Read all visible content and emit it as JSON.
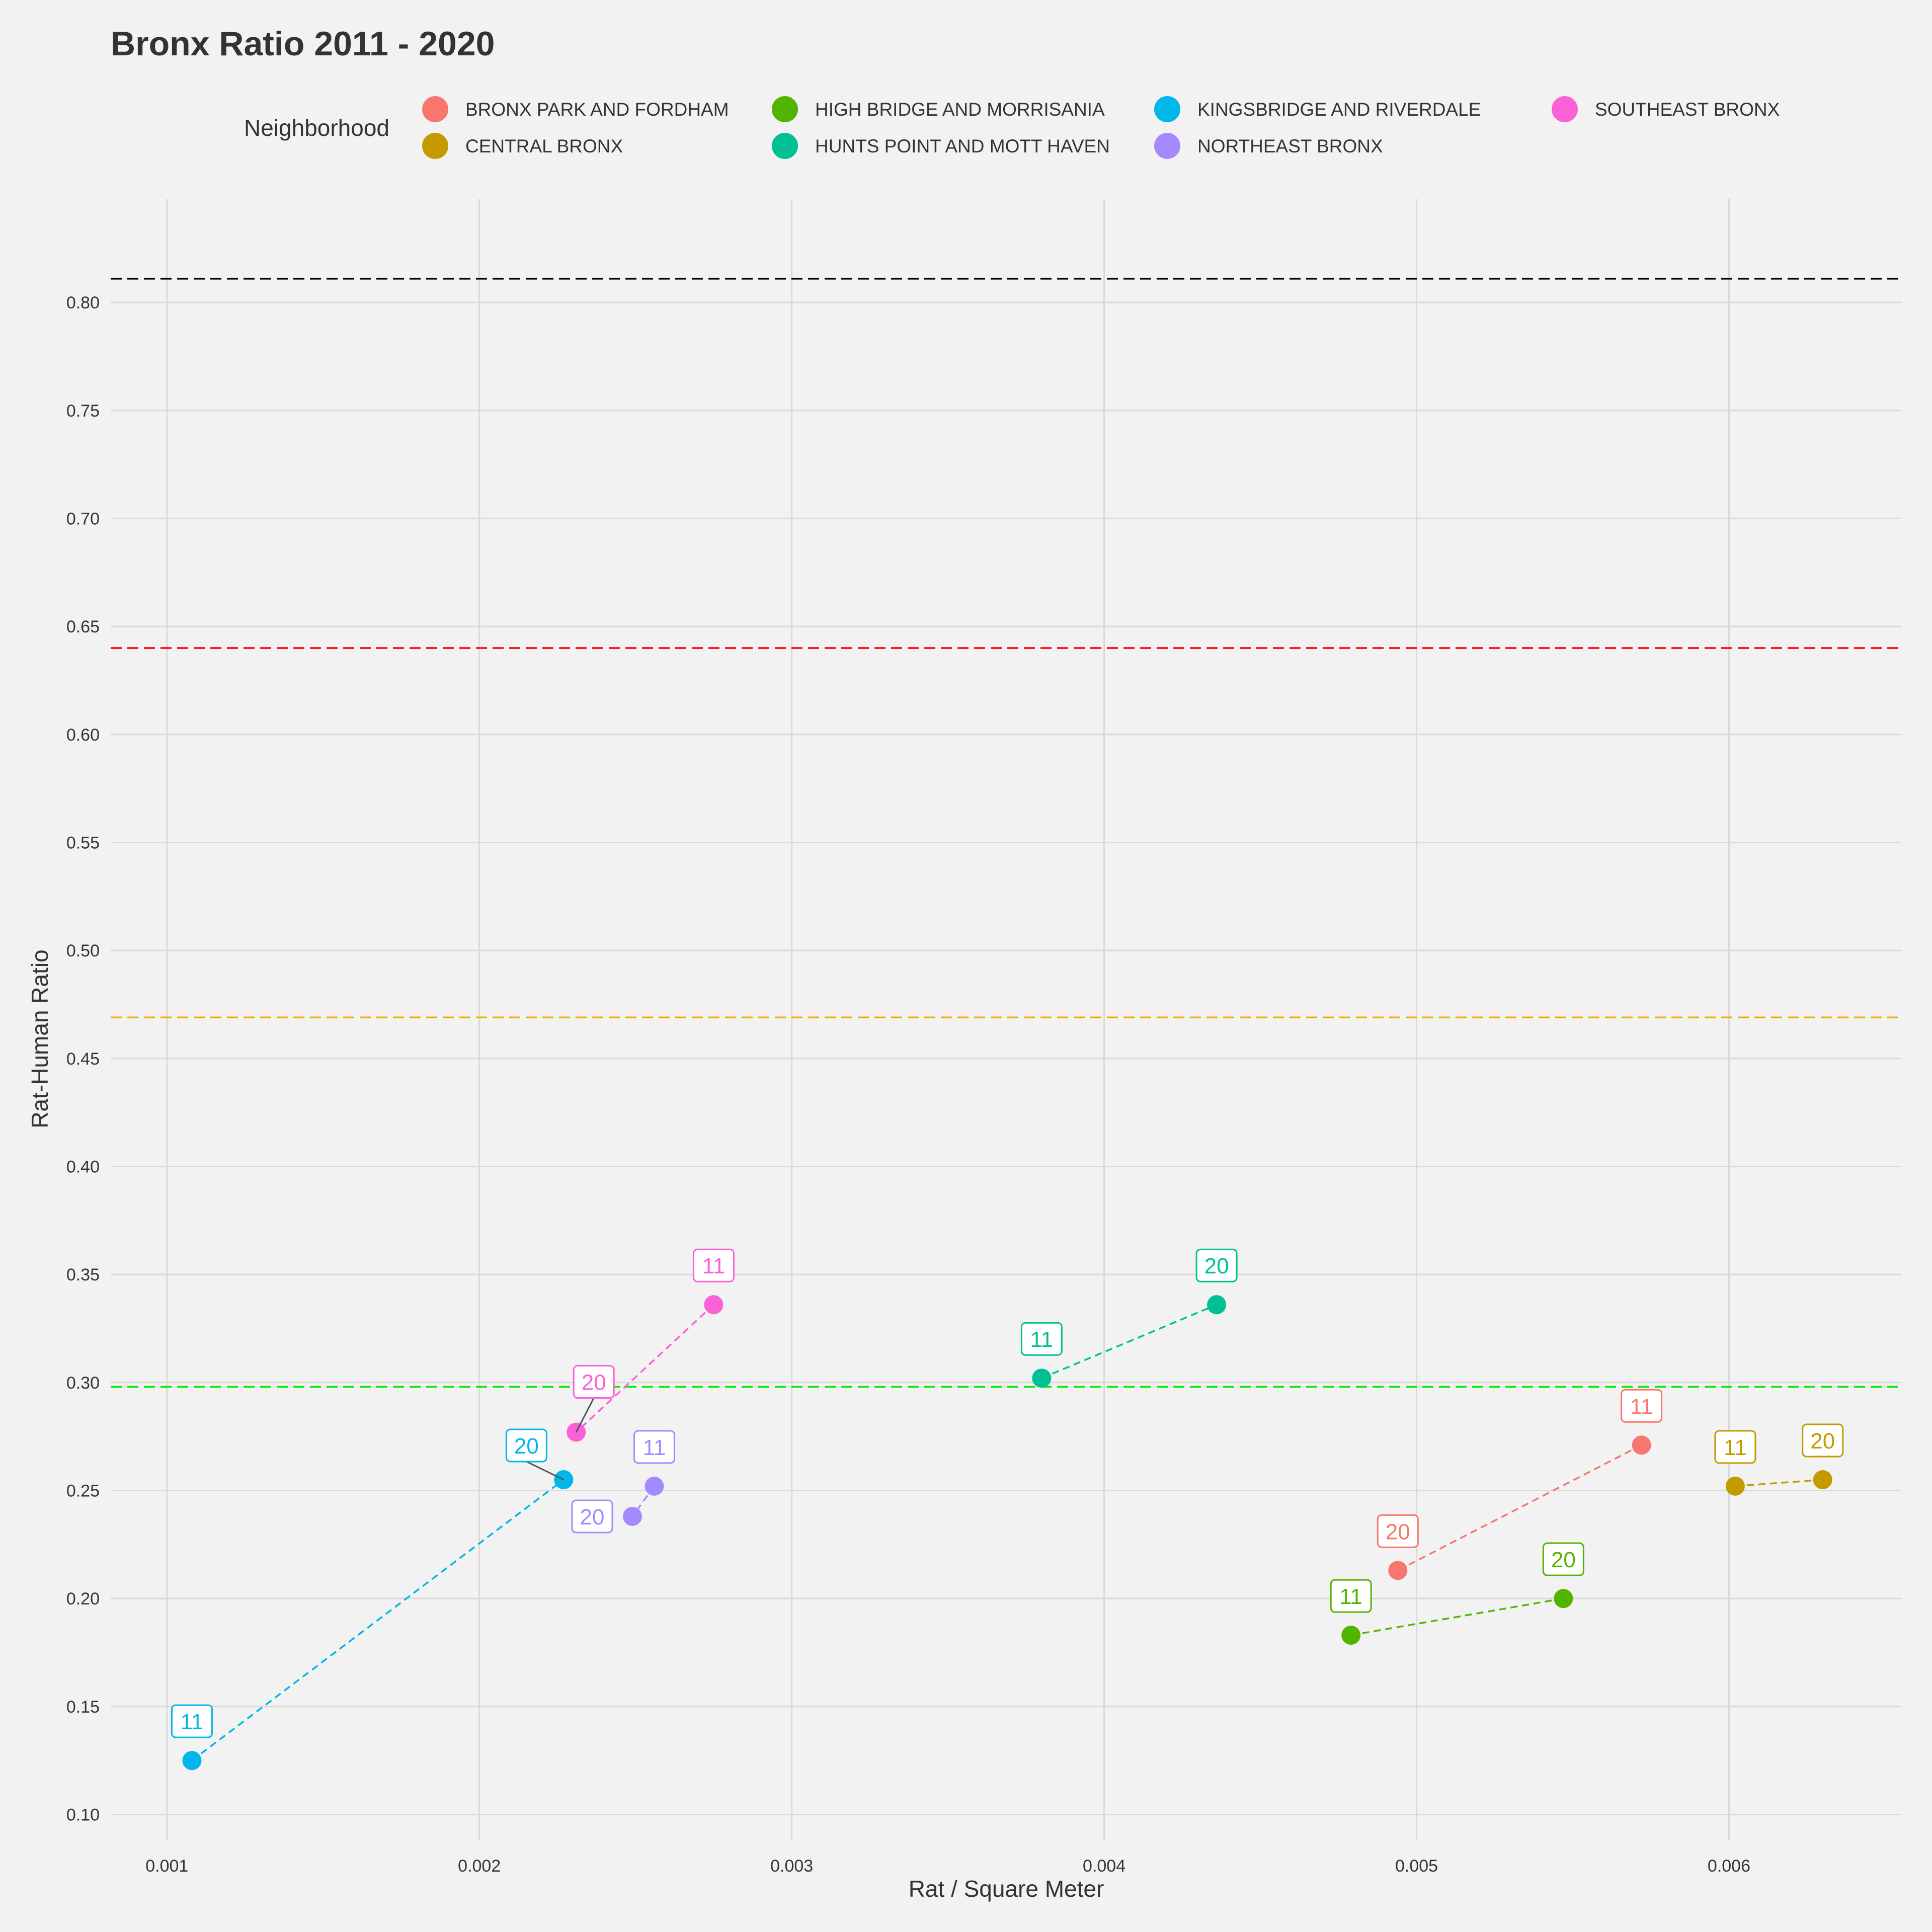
{
  "chart_data": {
    "type": "scatter",
    "title": "Bronx Ratio 2011 - 2020",
    "xlabel": "Rat / Square Meter",
    "ylabel": "Rat-Human Ratio",
    "xlim": [
      0.00082,
      0.00655
    ],
    "ylim": [
      0.088,
      0.848
    ],
    "x_ticks": [
      "0.001",
      "0.002",
      "0.003",
      "0.004",
      "0.005",
      "0.006"
    ],
    "y_ticks": [
      "0.10",
      "0.15",
      "0.20",
      "0.25",
      "0.30",
      "0.35",
      "0.40",
      "0.45",
      "0.50",
      "0.55",
      "0.60",
      "0.65",
      "0.70",
      "0.75",
      "0.80"
    ],
    "grid": true,
    "legend": {
      "title": "Neighborhood",
      "position": "top"
    },
    "reference_lines": [
      {
        "y": 0.811,
        "color": "#000000"
      },
      {
        "y": 0.64,
        "color": "#ff0000"
      },
      {
        "y": 0.469,
        "color": "#ffa500"
      },
      {
        "y": 0.298,
        "color": "#00ee00"
      }
    ],
    "series": [
      {
        "name": "BRONX PARK AND FORDHAM",
        "color": "#F8766D",
        "points": [
          {
            "label": "11",
            "x": 0.00572,
            "y": 0.271
          },
          {
            "label": "20",
            "x": 0.00494,
            "y": 0.213
          }
        ]
      },
      {
        "name": "CENTRAL BRONX",
        "color": "#C49A00",
        "points": [
          {
            "label": "11",
            "x": 0.00602,
            "y": 0.252
          },
          {
            "label": "20",
            "x": 0.0063,
            "y": 0.255
          }
        ]
      },
      {
        "name": "HIGH BRIDGE AND MORRISANIA",
        "color": "#53B400",
        "points": [
          {
            "label": "11",
            "x": 0.00479,
            "y": 0.183
          },
          {
            "label": "20",
            "x": 0.00547,
            "y": 0.2
          }
        ]
      },
      {
        "name": "HUNTS POINT AND MOTT HAVEN",
        "color": "#00C094",
        "points": [
          {
            "label": "11",
            "x": 0.0038,
            "y": 0.302
          },
          {
            "label": "20",
            "x": 0.00436,
            "y": 0.336
          }
        ]
      },
      {
        "name": "KINGSBRIDGE AND RIVERDALE",
        "color": "#00B6EB",
        "points": [
          {
            "label": "11",
            "x": 0.00108,
            "y": 0.125
          },
          {
            "label": "20",
            "x": 0.00227,
            "y": 0.255
          }
        ]
      },
      {
        "name": "NORTHEAST BRONX",
        "color": "#A58AFF",
        "points": [
          {
            "label": "11",
            "x": 0.00256,
            "y": 0.252
          },
          {
            "label": "20",
            "x": 0.00249,
            "y": 0.238
          }
        ]
      },
      {
        "name": "SOUTHEAST BRONX",
        "color": "#FB61D7",
        "points": [
          {
            "label": "11",
            "x": 0.00275,
            "y": 0.336
          },
          {
            "label": "20",
            "x": 0.00231,
            "y": 0.277
          }
        ]
      }
    ]
  }
}
